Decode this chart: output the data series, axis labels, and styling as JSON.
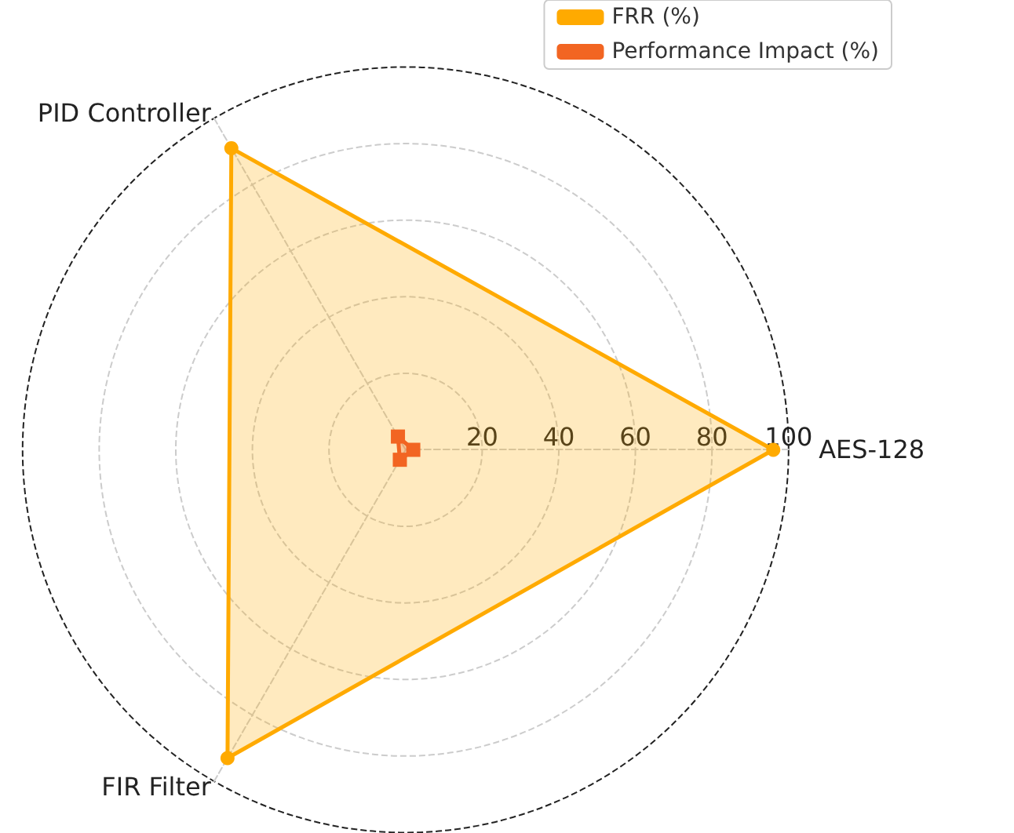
{
  "chart_data": {
    "type": "radar",
    "categories": [
      "AES-128",
      "FIR Filter",
      "PID Controller"
    ],
    "series": [
      {
        "name": "FRR (%)",
        "color": "#ffaa00",
        "values": [
          96,
          93,
          91
        ],
        "marker": "circle"
      },
      {
        "name": "Performance Impact (%)",
        "color": "#f26522",
        "values": [
          2,
          3,
          4
        ],
        "marker": "square"
      }
    ],
    "ylim": [
      0,
      100
    ],
    "yticks": [
      20,
      40,
      60,
      80,
      100
    ],
    "grid": true,
    "legend": "top right",
    "line_style": "solid"
  }
}
